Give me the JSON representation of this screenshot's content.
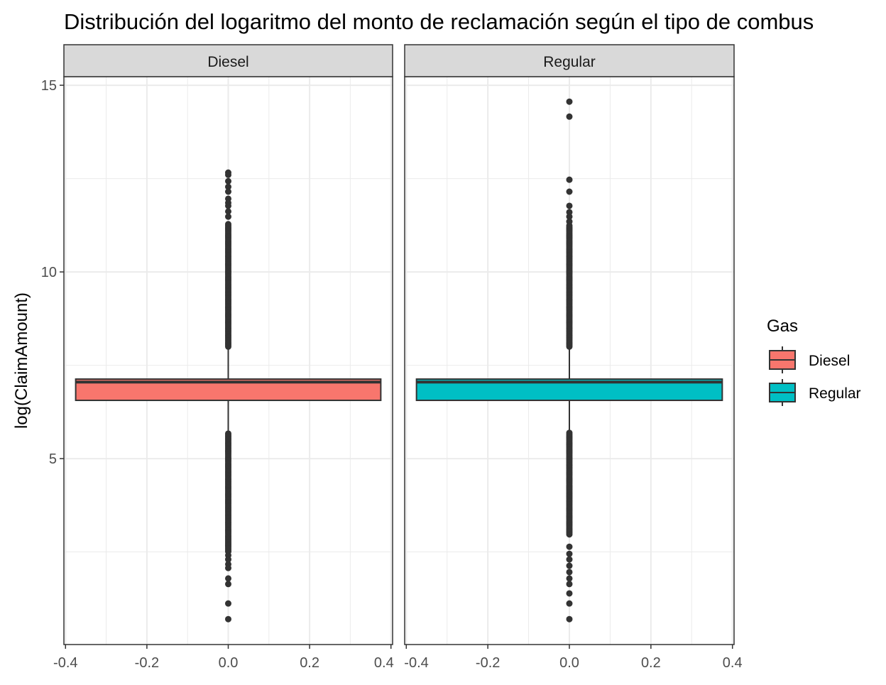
{
  "chart_data": {
    "type": "boxplot",
    "title": "Distribución del logaritmo del monto de reclamación según el tipo de combus",
    "ylabel": "log(ClaimAmount)",
    "xlabel": "",
    "ylim": [
      0.02,
      15.23
    ],
    "xlim": [
      -0.404,
      0.404
    ],
    "yticks": [
      5,
      10,
      15
    ],
    "ytick_labels": [
      "5",
      "10",
      "15"
    ],
    "xticks": [
      -0.4,
      -0.2,
      0.0,
      0.2,
      0.4
    ],
    "xtick_labels": [
      "-0.4",
      "-0.2",
      "0.0",
      "0.2",
      "0.4"
    ],
    "grid": true,
    "legend": {
      "title": "Gas",
      "position": "right",
      "entries": [
        "Diesel",
        "Regular"
      ]
    },
    "colors": {
      "Diesel": "#F8766D",
      "Regular": "#00BFC4",
      "outline": "#333333",
      "strip": "#D9D9D9",
      "grid": "#EBEBEB"
    },
    "facets": [
      {
        "label": "Diesel",
        "box_halfwidth": 0.375,
        "q1": 6.56,
        "median": 7.05,
        "q3": 7.13,
        "whisker_low": 5.7,
        "whisker_high": 8.0,
        "outlier_ranges": [
          [
            8.0,
            11.3
          ],
          [
            2.51,
            5.7
          ]
        ],
        "outliers": [
          12.66,
          12.6,
          12.43,
          12.28,
          12.15,
          11.96,
          11.85,
          11.77,
          11.62,
          11.48,
          2.41,
          2.3,
          2.17,
          2.07,
          1.79,
          1.64,
          1.12,
          0.7
        ]
      },
      {
        "label": "Regular",
        "box_halfwidth": 0.375,
        "q1": 6.56,
        "median": 7.05,
        "q3": 7.13,
        "whisker_low": 5.7,
        "whisker_high": 8.0,
        "outlier_ranges": [
          [
            8.0,
            11.24
          ],
          [
            2.97,
            5.7
          ]
        ],
        "outliers": [
          14.56,
          14.16,
          12.47,
          12.15,
          11.77,
          11.6,
          11.48,
          11.35,
          2.64,
          2.45,
          2.3,
          2.13,
          1.96,
          1.79,
          1.64,
          1.39,
          1.12,
          0.7
        ]
      }
    ]
  }
}
